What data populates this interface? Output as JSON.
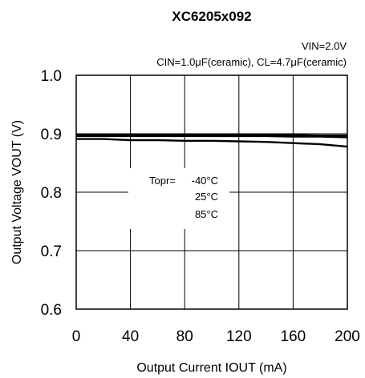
{
  "chart_data": {
    "type": "line",
    "title": "XC6205x092",
    "conditions": [
      "VIN=2.0V",
      "CIN=1.0μF(ceramic), CL=4.7μF(ceramic)"
    ],
    "xlabel": "Output Current IOUT (mA)",
    "ylabel": "Output Voltage VOUT (V)",
    "xlim": [
      0,
      200
    ],
    "ylim": [
      0.6,
      1.0
    ],
    "xticks": [
      0,
      40,
      80,
      120,
      160,
      200
    ],
    "xtick_labels": [
      "0",
      "40",
      "80",
      "120",
      "160",
      "200"
    ],
    "yticks": [
      0.6,
      0.7,
      0.8,
      0.9,
      1.0
    ],
    "ytick_labels": [
      "0.6",
      "0.7",
      "0.8",
      "0.9",
      "1.0"
    ],
    "grid": true,
    "legend": {
      "prefix": "Topr= ",
      "labels": [
        "-40°C",
        "25°C",
        "85°C"
      ]
    },
    "x": [
      0,
      20,
      40,
      60,
      80,
      100,
      120,
      140,
      160,
      180,
      200
    ],
    "series": [
      {
        "name": "-40°C",
        "values": [
          0.898,
          0.898,
          0.898,
          0.898,
          0.898,
          0.898,
          0.898,
          0.898,
          0.898,
          0.897,
          0.897
        ]
      },
      {
        "name": "25°C",
        "values": [
          0.896,
          0.896,
          0.896,
          0.896,
          0.896,
          0.896,
          0.896,
          0.896,
          0.895,
          0.895,
          0.894
        ]
      },
      {
        "name": "85°C",
        "values": [
          0.891,
          0.891,
          0.889,
          0.889,
          0.888,
          0.888,
          0.887,
          0.886,
          0.884,
          0.882,
          0.878
        ]
      }
    ]
  }
}
